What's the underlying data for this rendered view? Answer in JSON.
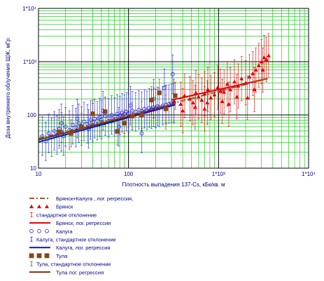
{
  "chart_data": {
    "type": "scatter",
    "title": "",
    "xlabel": "Плотность выпадения 137-Cs, кБк/кв. м",
    "ylabel": "Доза внутреннего облучения ЩЖ, мГр",
    "xscale": "log",
    "yscale": "log",
    "xlim": [
      10,
      10000
    ],
    "ylim": [
      10,
      10000
    ],
    "x_tick_labels": [
      "10",
      "100",
      "1*10³",
      "1*10⁴"
    ],
    "y_tick_labels": [
      "10",
      "100",
      "1*10³",
      "1*10⁴"
    ],
    "grid": true,
    "grid_color": "#1ec81e",
    "legend_position": "bottom",
    "series": [
      {
        "name": "Брянск",
        "marker": "triangle",
        "color": "#e00000",
        "x": [
          260,
          320,
          380,
          420,
          480,
          520,
          560,
          600,
          650,
          700,
          760,
          820,
          900,
          980,
          1050,
          1150,
          1250,
          1350,
          1500,
          1650,
          1800,
          2000,
          2200,
          2400,
          2600,
          2800,
          3000,
          3200,
          3400,
          3600,
          400,
          550,
          750,
          1100,
          1600,
          2500,
          3100,
          700,
          1300,
          2100
        ],
        "y": [
          140,
          180,
          160,
          230,
          200,
          170,
          260,
          220,
          190,
          250,
          300,
          210,
          240,
          330,
          280,
          270,
          380,
          300,
          420,
          350,
          480,
          400,
          520,
          600,
          700,
          850,
          1000,
          1200,
          1100,
          1300,
          120,
          140,
          170,
          180,
          220,
          300,
          700,
          130,
          160,
          210
        ]
      },
      {
        "name": "Брянск, лог. регрессия",
        "type": "line",
        "color": "#e00000",
        "x": [
          300,
          3500
        ],
        "y": [
          190,
          480
        ]
      },
      {
        "name": "Калуга",
        "marker": "circle",
        "color": "#2020d0",
        "x": [
          11,
          12,
          13,
          14,
          15,
          16,
          17,
          18,
          19,
          20,
          22,
          24,
          26,
          28,
          30,
          32,
          35,
          38,
          40,
          42,
          45,
          48,
          50,
          55,
          60,
          65,
          70,
          75,
          80,
          85,
          90,
          95,
          100,
          110,
          120,
          130,
          140,
          150,
          160,
          170,
          180,
          190,
          200,
          210,
          220,
          240,
          260,
          280,
          300,
          320,
          18,
          27,
          36,
          52,
          78,
          105,
          140,
          190,
          250,
          310
        ],
        "y": [
          40,
          32,
          45,
          38,
          50,
          42,
          55,
          48,
          40,
          60,
          52,
          65,
          58,
          70,
          62,
          75,
          68,
          80,
          72,
          85,
          78,
          90,
          82,
          95,
          88,
          100,
          92,
          105,
          98,
          110,
          104,
          115,
          108,
          120,
          114,
          125,
          118,
          130,
          122,
          135,
          128,
          140,
          133,
          145,
          138,
          150,
          155,
          160,
          165,
          170,
          70,
          85,
          55,
          120,
          60,
          150,
          45,
          200,
          320,
          580
        ]
      },
      {
        "name": "Калуга, лог. регрессия",
        "type": "line",
        "color": "#1010c0",
        "x": [
          10,
          330
        ],
        "y": [
          31,
          155
        ]
      },
      {
        "name": "Тула",
        "marker": "square",
        "color": "#8b4513",
        "x": [
          17,
          23,
          30,
          40,
          55,
          75,
          90,
          110,
          140,
          180,
          220,
          260,
          330
        ],
        "y": [
          48,
          45,
          60,
          105,
          115,
          49,
          70,
          95,
          100,
          190,
          260,
          130,
          230
        ]
      },
      {
        "name": "Тула лог. регрессия",
        "type": "line",
        "color": "#6b3010",
        "x": [
          10,
          330
        ],
        "y": [
          34,
          160
        ]
      },
      {
        "name": "Брянск+Калуга , лог. регрессия,",
        "type": "line",
        "color": "#a05a2c",
        "x": [
          10,
          3500
        ],
        "y": [
          36,
          480
        ]
      }
    ],
    "legend": [
      {
        "label": "Брянск+Калуга , лог. регрессия,",
        "kind": "dashdot",
        "color": "#a05a2c"
      },
      {
        "label": "Брянск",
        "kind": "triangles",
        "color": "#e00000"
      },
      {
        "label": "стандартное отклонение",
        "kind": "errbar",
        "color": "#e00000"
      },
      {
        "label": "Брянск, лог. регрессия",
        "kind": "line",
        "color": "#e00000"
      },
      {
        "label": "Калуга",
        "kind": "circles",
        "color": "#2020d0"
      },
      {
        "label": "Калуга, стандартное отклонение",
        "kind": "errbar",
        "color": "#1010c0"
      },
      {
        "label": "Калуга, лог. регрессия",
        "kind": "line",
        "color": "#1010c0"
      },
      {
        "label": "Тула",
        "kind": "squares",
        "color": "#8b4513"
      },
      {
        "label": "Тула, стандартное отклонение",
        "kind": "errbar",
        "color": "#8b4513"
      },
      {
        "label": "Тула лог. регрессия",
        "kind": "line",
        "color": "#6b3010"
      }
    ]
  }
}
